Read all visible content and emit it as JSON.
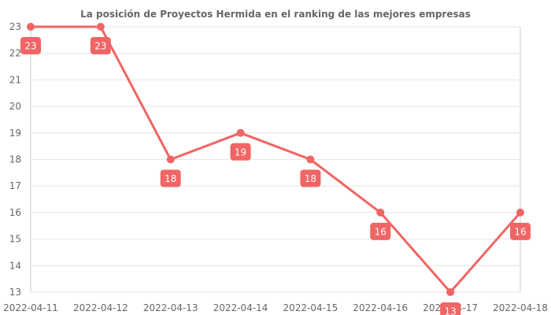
{
  "chart_data": {
    "type": "line",
    "title": "La posición de Proyectos Hermida en el ranking de las mejores empresas",
    "xlabel": "",
    "ylabel": "",
    "categories": [
      "2022-04-11",
      "2022-04-12",
      "2022-04-13",
      "2022-04-14",
      "2022-04-15",
      "2022-04-16",
      "2022-04-17",
      "2022-04-18"
    ],
    "values": [
      23,
      23,
      18,
      19,
      18,
      16,
      13,
      16
    ],
    "ylim": [
      13,
      23
    ],
    "yticks": [
      13,
      14,
      15,
      16,
      17,
      18,
      19,
      20,
      21,
      22,
      23
    ],
    "grid": true,
    "legend": "none",
    "color": "#f06565"
  }
}
